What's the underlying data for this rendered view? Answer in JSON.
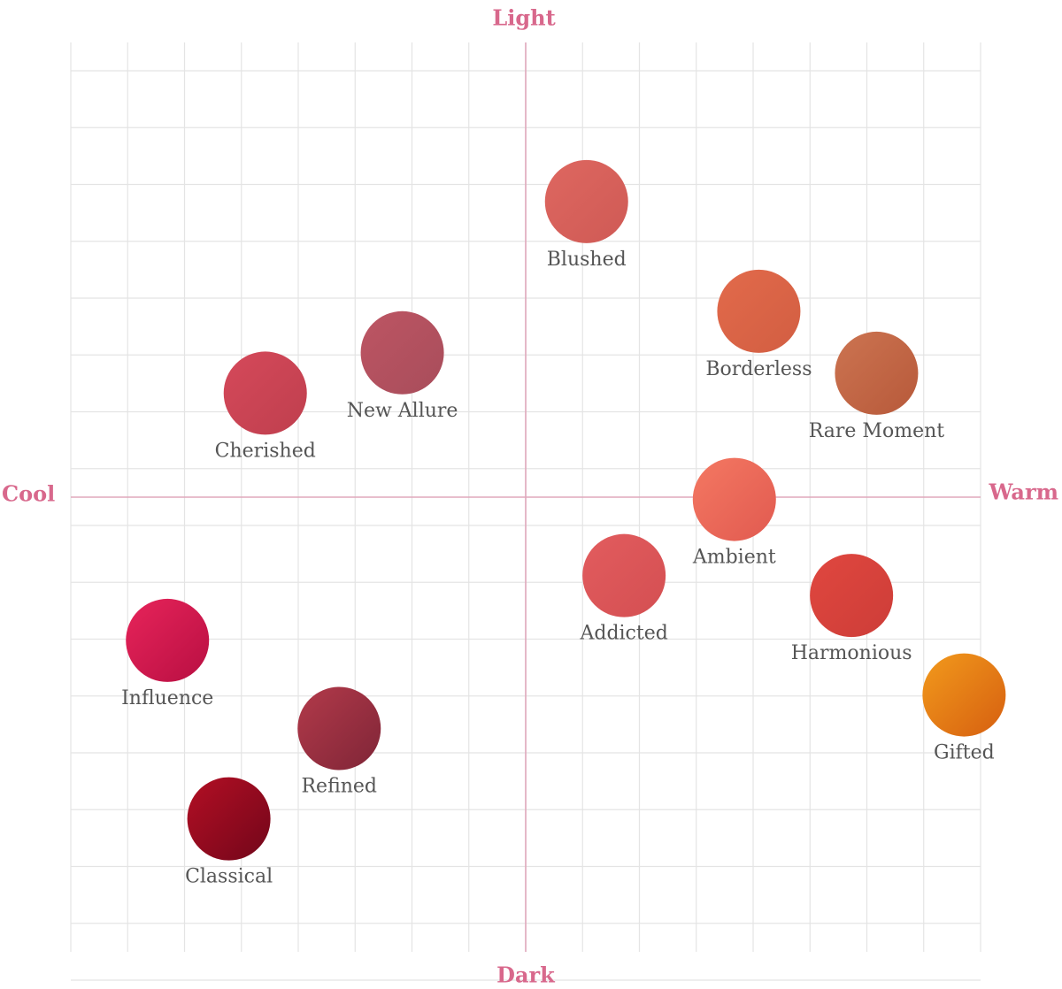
{
  "chart_data": {
    "type": "scatter",
    "title": "",
    "axis_labels": {
      "top": "Light",
      "bottom": "Dark",
      "left": "Cool",
      "right": "Warm"
    },
    "x_axis": {
      "name": "Cool to Warm",
      "range": [
        -8,
        8
      ]
    },
    "y_axis": {
      "name": "Dark to Light",
      "range": [
        -8,
        8
      ]
    },
    "grid": true,
    "grid_divisions": 16,
    "axis_label_color": "#d8688c",
    "points": [
      {
        "name": "Blushed",
        "x": 1.07,
        "y": 5.2,
        "color": "#de6760",
        "color_dark": "#cf5a55"
      },
      {
        "name": "Borderless",
        "x": 4.1,
        "y": 3.27,
        "color": "#e26a4b",
        "color_dark": "#d25e42"
      },
      {
        "name": "Rare Moment",
        "x": 6.17,
        "y": 2.18,
        "color": "#cc7451",
        "color_dark": "#b7593a"
      },
      {
        "name": "New Allure",
        "x": -2.17,
        "y": 2.54,
        "color": "#bd5563",
        "color_dark": "#a84d5b"
      },
      {
        "name": "Cherished",
        "x": -4.58,
        "y": 1.83,
        "color": "#d5495a",
        "color_dark": "#bf3f4e"
      },
      {
        "name": "Ambient",
        "x": 3.67,
        "y": -0.04,
        "color": "#f47862",
        "color_dark": "#e15a50"
      },
      {
        "name": "Addicted",
        "x": 1.73,
        "y": -1.38,
        "color": "#e25c5e",
        "color_dark": "#d44f52"
      },
      {
        "name": "Harmonious",
        "x": 5.73,
        "y": -1.73,
        "color": "#e0473f",
        "color_dark": "#cd3d38"
      },
      {
        "name": "Gifted",
        "x": 7.71,
        "y": -3.48,
        "color": "#f29a1c",
        "color_dark": "#d65f10"
      },
      {
        "name": "Influence",
        "x": -6.3,
        "y": -2.52,
        "color": "#e7245a",
        "color_dark": "#b80f42"
      },
      {
        "name": "Refined",
        "x": -3.28,
        "y": -4.07,
        "color": "#b23a4a",
        "color_dark": "#7f2537"
      },
      {
        "name": "Classical",
        "x": -5.22,
        "y": -5.66,
        "color": "#b30f24",
        "color_dark": "#72061a"
      }
    ]
  }
}
